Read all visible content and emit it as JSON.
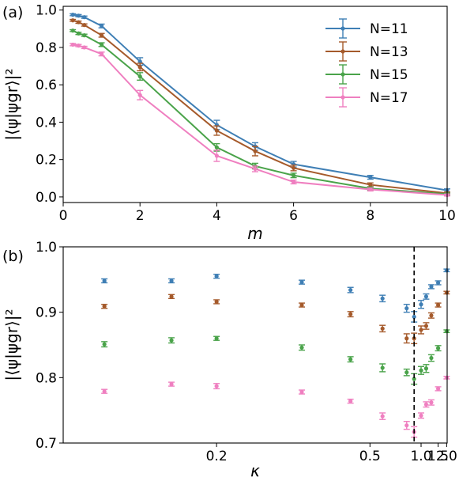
{
  "colors": {
    "N=11": "#3f7fb5",
    "N=13": "#a55a2b",
    "N=15": "#4aa34a",
    "N=17": "#ef7fc0"
  },
  "chart_data": [
    {
      "type": "line",
      "panel_label": "(a)",
      "xlabel": "m",
      "ylabel": "|⟨ψ|ψgr⟩|²",
      "xlim": [
        0,
        10
      ],
      "ylim": [
        -0.03,
        1.02
      ],
      "xticks": [
        "0",
        "2",
        "4",
        "6",
        "8",
        "10"
      ],
      "yticks": [
        "0.0",
        "0.2",
        "0.4",
        "0.6",
        "0.8",
        "1.0"
      ],
      "legend_position": "top-right",
      "x": [
        0.25,
        0.4,
        0.55,
        1,
        2,
        4,
        5,
        6,
        8,
        10
      ],
      "series": [
        {
          "name": "N=11",
          "values": [
            0.975,
            0.97,
            0.962,
            0.915,
            0.725,
            0.385,
            0.27,
            0.175,
            0.105,
            0.035
          ],
          "errors": [
            0.005,
            0.006,
            0.006,
            0.01,
            0.02,
            0.025,
            0.02,
            0.015,
            0.01,
            0.008
          ]
        },
        {
          "name": "N=13",
          "values": [
            0.945,
            0.935,
            0.92,
            0.865,
            0.695,
            0.355,
            0.245,
            0.155,
            0.065,
            0.02
          ],
          "errors": [
            0.005,
            0.006,
            0.006,
            0.01,
            0.02,
            0.025,
            0.025,
            0.015,
            0.01,
            0.006
          ]
        },
        {
          "name": "N=15",
          "values": [
            0.89,
            0.875,
            0.865,
            0.815,
            0.645,
            0.265,
            0.165,
            0.115,
            0.045,
            0.015
          ],
          "errors": [
            0.005,
            0.006,
            0.006,
            0.01,
            0.02,
            0.02,
            0.015,
            0.012,
            0.008,
            0.005
          ]
        },
        {
          "name": "N=17",
          "values": [
            0.815,
            0.81,
            0.8,
            0.765,
            0.545,
            0.22,
            0.15,
            0.08,
            0.04,
            0.01
          ],
          "errors": [
            0.006,
            0.006,
            0.006,
            0.01,
            0.025,
            0.03,
            0.015,
            0.01,
            0.008,
            0.005
          ]
        }
      ]
    },
    {
      "type": "scatter",
      "panel_label": "(b)",
      "xlabel": "κ",
      "ylabel": "|⟨ψ|ψgr⟩|²",
      "xlim": [
        0.125,
        2.04
      ],
      "ylim": [
        0.7,
        1.0
      ],
      "x_scale": "reciprocal",
      "xticks": [
        "0.2",
        "0.5",
        "1.0",
        "1.5",
        "2.0"
      ],
      "yticks": [
        "0.7",
        "0.8",
        "0.9",
        "1.0"
      ],
      "reference_line_x": 0.88,
      "x": [
        0.139,
        0.17,
        0.2,
        0.3,
        0.42,
        0.57,
        0.78,
        0.88,
        1.0,
        1.11,
        1.25,
        1.5,
        2.0
      ],
      "series": [
        {
          "name": "N=11",
          "values": [
            0.948,
            0.948,
            0.955,
            0.946,
            0.934,
            0.921,
            0.906,
            0.893,
            0.912,
            0.924,
            0.939,
            0.945,
            0.964
          ],
          "errors": [
            0.003,
            0.003,
            0.003,
            0.003,
            0.004,
            0.005,
            0.006,
            0.008,
            0.006,
            0.004,
            0.003,
            0.003,
            0.002
          ]
        },
        {
          "name": "N=13",
          "values": [
            0.909,
            0.924,
            0.916,
            0.911,
            0.897,
            0.875,
            0.86,
            0.86,
            0.873,
            0.879,
            0.895,
            0.911,
            0.93
          ],
          "errors": [
            0.003,
            0.003,
            0.003,
            0.003,
            0.004,
            0.005,
            0.007,
            0.008,
            0.006,
            0.005,
            0.004,
            0.003,
            0.002
          ]
        },
        {
          "name": "N=15",
          "values": [
            0.851,
            0.857,
            0.86,
            0.846,
            0.828,
            0.815,
            0.808,
            0.798,
            0.811,
            0.814,
            0.83,
            0.845,
            0.871
          ],
          "errors": [
            0.004,
            0.004,
            0.003,
            0.004,
            0.004,
            0.006,
            0.005,
            0.008,
            0.006,
            0.006,
            0.005,
            0.004,
            0.002
          ]
        },
        {
          "name": "N=17",
          "values": [
            0.779,
            0.79,
            0.787,
            0.778,
            0.764,
            0.741,
            0.727,
            0.717,
            0.742,
            0.759,
            0.762,
            0.783,
            0.8
          ],
          "errors": [
            0.003,
            0.003,
            0.004,
            0.003,
            0.003,
            0.005,
            0.006,
            0.008,
            0.004,
            0.004,
            0.004,
            0.003,
            0.002
          ]
        }
      ]
    }
  ]
}
